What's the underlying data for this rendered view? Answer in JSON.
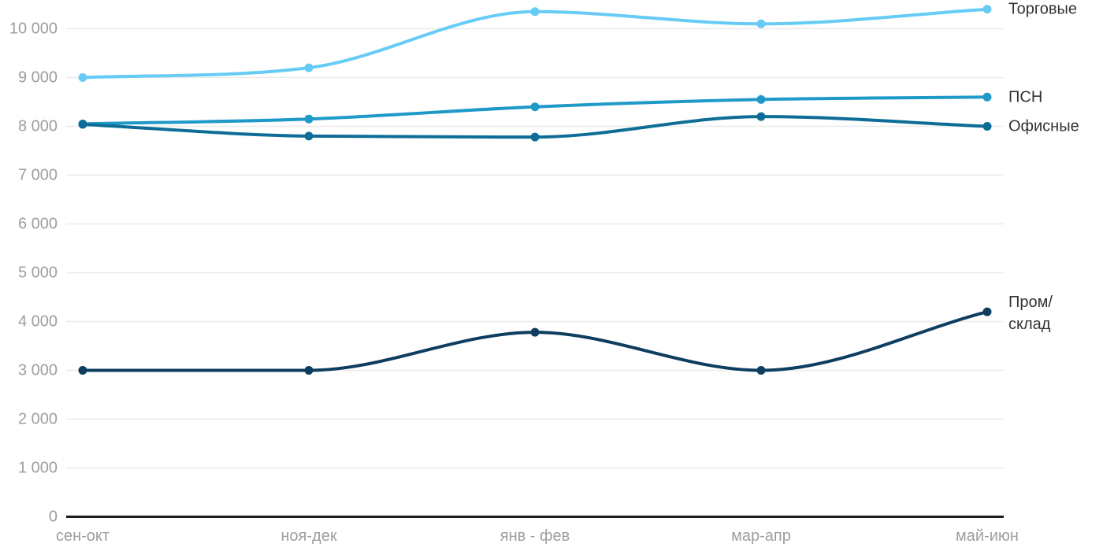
{
  "chart_data": {
    "type": "line",
    "title": "",
    "xlabel": "",
    "ylabel": "",
    "categories": [
      "сен-окт",
      "ноя-дек",
      "янв - фев",
      "мар-апр",
      "май-июн"
    ],
    "series": [
      {
        "id": "torgovye",
        "name": "Торговые",
        "label_lines": [
          "Торговые"
        ],
        "color": "#67ccf5",
        "values": [
          9000,
          9200,
          10350,
          10100,
          10400
        ]
      },
      {
        "id": "psn",
        "name": "ПСН",
        "label_lines": [
          "ПСН"
        ],
        "color": "#1f9ac8",
        "values": [
          8050,
          8150,
          8400,
          8550,
          8600
        ]
      },
      {
        "id": "ofisnye",
        "name": "Офисные",
        "label_lines": [
          "Офисные"
        ],
        "color": "#0d6d96",
        "values": [
          8040,
          7800,
          7780,
          8200,
          8000
        ]
      },
      {
        "id": "prom-sklad",
        "name": "Пром/склад",
        "label_lines": [
          "Пром/",
          "склад"
        ],
        "color": "#0d3d5f",
        "values": [
          3000,
          3000,
          3780,
          3000,
          4200
        ]
      }
    ],
    "yticks": {
      "values": [
        0,
        1000,
        2000,
        3000,
        4000,
        5000,
        6000,
        7000,
        8000,
        9000,
        10000
      ],
      "labels": [
        "0",
        "1 000",
        "2 000",
        "3 000",
        "4 000",
        "5 000",
        "6 000",
        "7 000",
        "8 000",
        "9 000",
        "10 000"
      ]
    },
    "ylim": [
      0,
      10000
    ],
    "grid": true,
    "legend_position": "right-of-line-end",
    "curve": "smooth",
    "colors": {
      "grid": "#ebebeb",
      "axis": "#1c1c1c",
      "tick_text": "#9e9e9e",
      "series_label_text": "#333333",
      "background": "#ffffff"
    }
  }
}
